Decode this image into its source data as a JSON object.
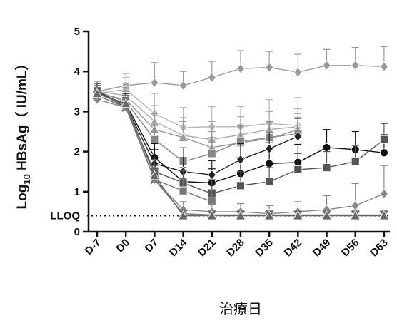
{
  "chart_data": {
    "type": "line",
    "title": "",
    "ylabel": "Log10 HBsAg（ IU/mL）",
    "xlabel": "治療日",
    "ylim": [
      0,
      5
    ],
    "yticks": [
      0,
      1,
      2,
      3,
      4,
      5
    ],
    "categories": [
      "D-7",
      "D0",
      "D7",
      "D14",
      "D21",
      "D28",
      "D35",
      "D42",
      "D49",
      "D56",
      "D63"
    ],
    "lloq": {
      "label": "LLOQ",
      "value": 0.4
    },
    "grid": false,
    "legend": "none",
    "series": [
      {
        "marker": "diamond",
        "color": "#9a9a9a",
        "values": [
          3.5,
          3.65,
          3.72,
          3.65,
          3.85,
          4.07,
          4.1,
          3.98,
          4.15,
          4.15,
          4.12
        ],
        "err": [
          0.25,
          0.3,
          0.5,
          0.35,
          0.4,
          0.45,
          0.4,
          0.45,
          0.4,
          0.45,
          0.5
        ]
      },
      {
        "marker": "diamond",
        "color": "#b8b8b8",
        "values": [
          3.45,
          3.55,
          2.95,
          2.6,
          2.62,
          2.62,
          2.7,
          2.65,
          null,
          null,
          null
        ],
        "err": [
          0.2,
          0.3,
          0.5,
          0.5,
          0.5,
          0.5,
          0.6,
          0.7,
          null,
          null,
          null
        ]
      },
      {
        "marker": "triangle",
        "color": "#aaaaaa",
        "values": [
          3.5,
          3.4,
          2.75,
          2.4,
          2.3,
          2.42,
          2.55,
          2.62,
          null,
          null,
          null
        ],
        "err": [
          0.2,
          0.3,
          0.4,
          0.45,
          0.45,
          0.45,
          0.45,
          0.45,
          null,
          null,
          null
        ]
      },
      {
        "marker": "triangle",
        "color": "#999999",
        "values": [
          3.45,
          3.3,
          2.55,
          2.35,
          2.1,
          2.22,
          2.32,
          2.55,
          null,
          null,
          null
        ],
        "err": [
          0.2,
          0.3,
          0.4,
          0.4,
          0.4,
          0.4,
          0.4,
          0.4,
          null,
          null,
          null
        ]
      },
      {
        "marker": "square",
        "color": "#888888",
        "values": [
          3.5,
          3.25,
          2.3,
          1.75,
          1.95,
          2.25,
          2.35,
          2.45,
          null,
          null,
          null
        ],
        "err": [
          0.2,
          0.25,
          0.35,
          0.35,
          0.4,
          0.4,
          0.4,
          0.4,
          null,
          null,
          null
        ]
      },
      {
        "marker": "circle",
        "color": "#111111",
        "values": [
          3.45,
          3.2,
          1.85,
          1.25,
          1.22,
          1.45,
          1.7,
          1.73,
          2.1,
          2.05,
          1.97
        ],
        "err": [
          0.2,
          0.25,
          0.35,
          0.35,
          0.35,
          0.4,
          0.4,
          0.45,
          0.45,
          0.45,
          0.45
        ]
      },
      {
        "marker": "diamond",
        "color": "#222222",
        "values": [
          3.5,
          3.15,
          1.7,
          1.5,
          1.42,
          1.8,
          2.07,
          2.38,
          null,
          null,
          null
        ],
        "err": [
          0.2,
          0.25,
          0.35,
          0.35,
          0.35,
          0.4,
          0.4,
          0.45,
          null,
          null,
          null
        ]
      },
      {
        "marker": "square",
        "color": "#555555",
        "values": [
          3.5,
          3.1,
          1.5,
          1.22,
          0.95,
          1.15,
          1.25,
          1.55,
          1.6,
          1.75,
          2.3
        ],
        "err": [
          0.2,
          0.25,
          0.3,
          0.3,
          0.35,
          0.35,
          0.35,
          0.4,
          0.4,
          0.4,
          0.4
        ]
      },
      {
        "marker": "square",
        "color": "#777777",
        "values": [
          3.45,
          3.15,
          1.3,
          1.02,
          0.75,
          null,
          null,
          null,
          null,
          null,
          null
        ],
        "err": [
          0.2,
          0.25,
          0.3,
          0.3,
          0.3,
          null,
          null,
          null,
          null,
          null,
          null
        ]
      },
      {
        "marker": "diamond",
        "color": "#888888",
        "values": [
          3.3,
          3.1,
          1.3,
          0.55,
          0.5,
          0.5,
          0.45,
          0.5,
          0.55,
          0.65,
          0.95
        ],
        "err": [
          0.15,
          0.2,
          0.25,
          0.2,
          0.2,
          0.2,
          0.2,
          0.25,
          0.35,
          0.55,
          0.7
        ]
      },
      {
        "marker": "x",
        "color": "#777777",
        "values": [
          3.4,
          3.1,
          1.3,
          0.45,
          0.42,
          0.42,
          0.42,
          0.42,
          0.42,
          0.42,
          0.42
        ],
        "err": [
          0.15,
          0.2,
          0.2,
          0.1,
          0.1,
          0.1,
          0.1,
          0.1,
          0.1,
          0.1,
          0.1
        ]
      },
      {
        "marker": "triangle",
        "color": "#666666",
        "values": [
          3.45,
          3.2,
          1.4,
          0.4,
          0.4,
          0.4,
          0.4,
          0.4,
          0.4,
          0.4,
          0.4
        ],
        "err": [
          0.15,
          0.2,
          0.25,
          0.1,
          0.1,
          0.1,
          0.1,
          0.1,
          0.1,
          0.1,
          0.1
        ]
      }
    ]
  }
}
